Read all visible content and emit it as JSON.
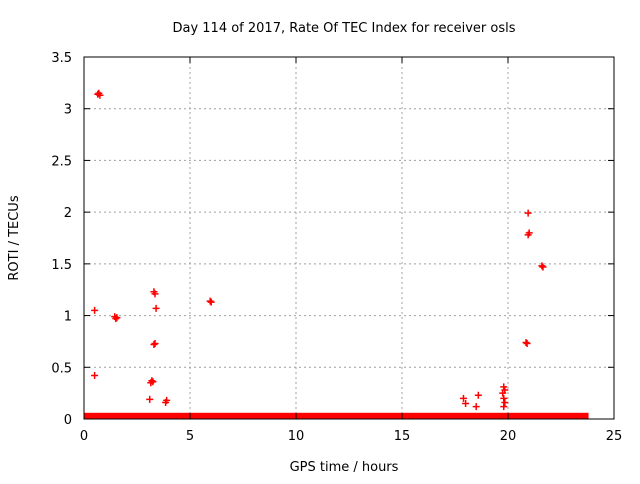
{
  "chart_data": {
    "type": "scatter",
    "title": "Day 114 of 2017, Rate Of TEC Index for receiver osls",
    "xlabel": "GPS time / hours",
    "ylabel": "ROTI / TECUs",
    "xlim": [
      0,
      25
    ],
    "ylim": [
      0,
      3.5
    ],
    "xticks": [
      0,
      5,
      10,
      15,
      20,
      25
    ],
    "yticks": [
      0,
      0.5,
      1,
      1.5,
      2,
      2.5,
      3,
      3.5
    ],
    "xtick_labels": [
      "0",
      "5",
      "10",
      "15",
      "20",
      "25"
    ],
    "ytick_labels": [
      "0",
      "0.5",
      "1",
      "1.5",
      "2",
      "2.5",
      "3",
      "3.5"
    ],
    "grid": true,
    "marker": "+",
    "color": "#ff0000",
    "baseline_band": {
      "x_range": [
        0,
        23.8
      ],
      "y_range": [
        0,
        0.06
      ]
    },
    "points": [
      {
        "x": 0.7,
        "y": 3.15
      },
      {
        "x": 0.75,
        "y": 3.13
      },
      {
        "x": 0.65,
        "y": 3.14
      },
      {
        "x": 0.5,
        "y": 1.05
      },
      {
        "x": 0.5,
        "y": 0.42
      },
      {
        "x": 1.45,
        "y": 0.99
      },
      {
        "x": 1.55,
        "y": 0.98
      },
      {
        "x": 1.5,
        "y": 0.97
      },
      {
        "x": 3.1,
        "y": 0.19
      },
      {
        "x": 3.2,
        "y": 0.37
      },
      {
        "x": 3.25,
        "y": 0.36
      },
      {
        "x": 3.15,
        "y": 0.35
      },
      {
        "x": 3.3,
        "y": 0.72
      },
      {
        "x": 3.35,
        "y": 0.73
      },
      {
        "x": 3.3,
        "y": 1.23
      },
      {
        "x": 3.35,
        "y": 1.21
      },
      {
        "x": 3.4,
        "y": 1.07
      },
      {
        "x": 3.9,
        "y": 0.18
      },
      {
        "x": 3.85,
        "y": 0.16
      },
      {
        "x": 5.95,
        "y": 1.14
      },
      {
        "x": 6.0,
        "y": 1.13
      },
      {
        "x": 17.9,
        "y": 0.2
      },
      {
        "x": 18.0,
        "y": 0.15
      },
      {
        "x": 18.6,
        "y": 0.23
      },
      {
        "x": 18.5,
        "y": 0.12
      },
      {
        "x": 19.8,
        "y": 0.31
      },
      {
        "x": 19.85,
        "y": 0.28
      },
      {
        "x": 19.75,
        "y": 0.25
      },
      {
        "x": 19.8,
        "y": 0.2
      },
      {
        "x": 19.85,
        "y": 0.16
      },
      {
        "x": 19.8,
        "y": 0.12
      },
      {
        "x": 20.85,
        "y": 0.74
      },
      {
        "x": 20.9,
        "y": 0.73
      },
      {
        "x": 20.95,
        "y": 1.78
      },
      {
        "x": 21.0,
        "y": 1.8
      },
      {
        "x": 20.95,
        "y": 1.99
      },
      {
        "x": 21.6,
        "y": 1.48
      },
      {
        "x": 21.65,
        "y": 1.47
      }
    ]
  }
}
